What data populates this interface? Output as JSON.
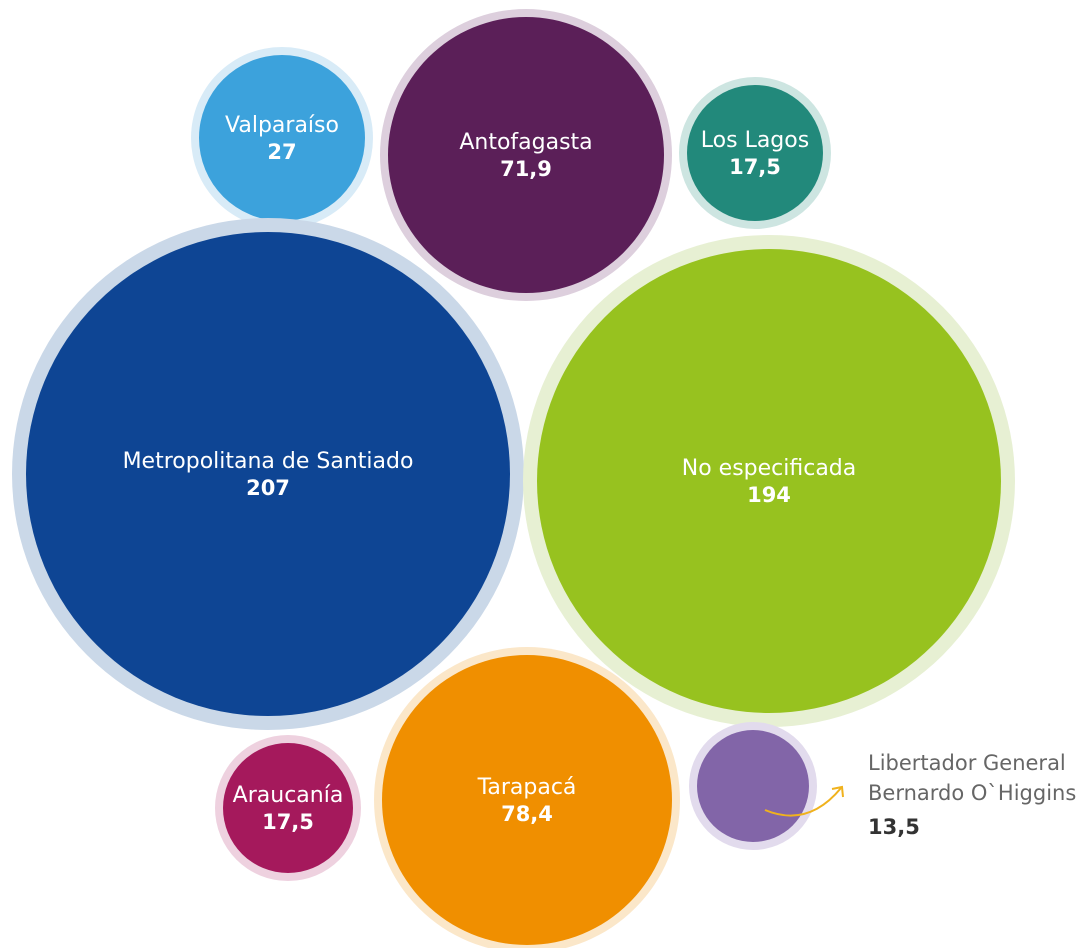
{
  "chart_data": {
    "type": "bubble",
    "series": [
      {
        "name": "Valparaíso",
        "value_label": "27",
        "value": 27,
        "color": "#3ca2dc",
        "ring": "#d8ebf7"
      },
      {
        "name": "Antofagasta",
        "value_label": "71,9",
        "value": 71.9,
        "color": "#5b1f58",
        "ring": "#ddcfdd"
      },
      {
        "name": "Los Lagos",
        "value_label": "17,5",
        "value": 17.5,
        "color": "#22897b",
        "ring": "#cde5e1"
      },
      {
        "name": "Metropolitana de Santiado",
        "value_label": "207",
        "value": 207,
        "color": "#0e4594",
        "ring": "#cad8e8"
      },
      {
        "name": "No especificada",
        "value_label": "194",
        "value": 194,
        "color": "#97c21f",
        "ring": "#e7f0d3"
      },
      {
        "name": "Araucanía",
        "value_label": "17,5",
        "value": 17.5,
        "color": "#a5195c",
        "ring": "#eed1df"
      },
      {
        "name": "Tarapacá",
        "value_label": "78,4",
        "value": 78.4,
        "color": "#f08f00",
        "ring": "#fbe7c9"
      },
      {
        "name_lines": [
          "Libertador General",
          "Bernardo O`Higgins"
        ],
        "value_label": "13,5",
        "value": 13.5,
        "color": "#8265a8",
        "ring": "#e2dbed",
        "arrow_color": "#f0b21d"
      }
    ]
  }
}
